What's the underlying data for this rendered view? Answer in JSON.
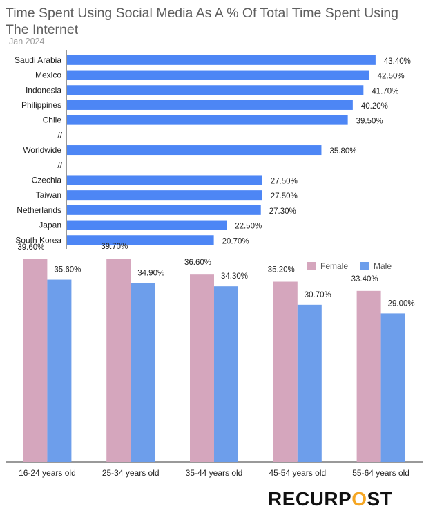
{
  "chart_data": [
    {
      "type": "bar",
      "orientation": "horizontal",
      "title": "Time Spent Using Social Media As A % Of Total Time Spent Using The Internet",
      "subtitle": "Jan 2024",
      "categories": [
        "Saudi Arabia",
        "Mexico",
        "Indonesia",
        "Philippines",
        "Chile",
        "//",
        "Worldwide",
        "//",
        "Czechia",
        "Taiwan",
        "Netherlands",
        "Japan",
        "South Korea"
      ],
      "values": [
        43.4,
        42.5,
        41.7,
        40.2,
        39.5,
        null,
        35.8,
        null,
        27.5,
        27.5,
        27.3,
        22.5,
        20.7
      ],
      "labels": [
        "43.40%",
        "42.50%",
        "41.70%",
        "40.20%",
        "39.50%",
        "",
        "35.80%",
        "",
        "27.50%",
        "27.50%",
        "27.30%",
        "22.50%",
        "20.70%"
      ],
      "xlim": [
        0,
        50
      ],
      "color": "#4d86f5",
      "grid": false
    },
    {
      "type": "bar",
      "orientation": "vertical",
      "categories": [
        "16-24  years old",
        "25-34 years old",
        "35-44 years old",
        "45-54 years old",
        "55-64 years old"
      ],
      "series": [
        {
          "name": "Female",
          "values": [
            39.6,
            39.7,
            36.6,
            35.2,
            33.4
          ],
          "labels": [
            "39.60%",
            "39.70%",
            "36.60%",
            "35.20%",
            "33.40%"
          ],
          "color": "#d5a6bd"
        },
        {
          "name": "Male",
          "values": [
            35.6,
            34.9,
            34.3,
            30.7,
            29.0
          ],
          "labels": [
            "35.60%",
            "34.90%",
            "34.30%",
            "30.70%",
            "29.00%"
          ],
          "color": "#6d9eeb"
        }
      ],
      "ylim": [
        0,
        40
      ],
      "legend": "top-right",
      "grid": false
    }
  ],
  "brand": {
    "text": "RECURPOST",
    "logo": true
  }
}
